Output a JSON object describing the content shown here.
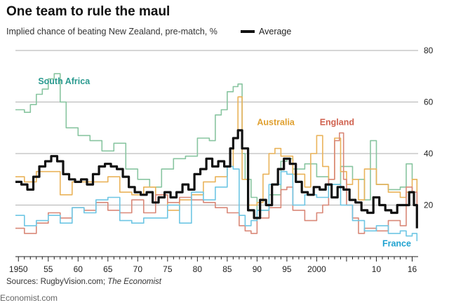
{
  "title": "One team to rule the maul",
  "subtitle": "Implied chance of beating New Zealand, pre-match, %",
  "legend": {
    "average_label": "Average"
  },
  "source": {
    "prefix": "Sources: RugbyVision.com; ",
    "italic": "The Economist"
  },
  "brand": "Economist.com",
  "colors": {
    "south_africa": "#88c5a0",
    "australia": "#eab35a",
    "england": "#d98878",
    "france": "#6ec6e4",
    "average": "#111111"
  },
  "chart_data": {
    "type": "line",
    "title": "One team to rule the maul",
    "ylabel": "Implied chance of beating New Zealand, pre-match, %",
    "xlabel": "",
    "xlim": [
      1949.5,
      2017
    ],
    "ylim": [
      0,
      80
    ],
    "yticks": [
      0,
      20,
      40,
      60,
      80
    ],
    "ytick_labels": [
      "",
      "20",
      "40",
      "60",
      "80"
    ],
    "xticks": [
      1950,
      1955,
      1960,
      1965,
      1970,
      1975,
      1980,
      1985,
      1990,
      1995,
      2000,
      2005,
      2010,
      2016
    ],
    "xtick_labels": [
      "1950",
      "55",
      "60",
      "65",
      "70",
      "75",
      "80",
      "85",
      "90",
      "95",
      "2000",
      "",
      "10",
      "16"
    ],
    "grid": true,
    "series": [
      {
        "name": "South Africa",
        "key": "south_africa",
        "x": [
          1949.5,
          1951,
          1952,
          1953,
          1954,
          1955,
          1956,
          1957,
          1958,
          1960,
          1962,
          1964,
          1966,
          1968,
          1970,
          1972,
          1974,
          1976,
          1978,
          1980,
          1982,
          1983,
          1984,
          1985,
          1986,
          1986.8,
          1987.5,
          1988,
          1989,
          1990,
          1992,
          1994,
          1995,
          1996,
          1998,
          2000,
          2002,
          2004,
          2006,
          2008,
          2009,
          2010,
          2012,
          2014,
          2015,
          2016,
          2016.8
        ],
        "values": [
          57,
          56,
          59,
          63,
          65,
          69,
          71,
          60,
          50,
          47,
          45,
          41,
          44,
          34,
          30,
          27,
          34,
          38,
          39,
          46,
          45,
          55,
          57,
          64,
          66,
          67,
          40,
          30,
          23,
          18,
          24,
          37,
          38,
          34,
          36,
          31,
          28,
          35,
          30,
          22,
          45,
          28,
          26,
          27,
          36,
          30,
          20
        ]
      },
      {
        "name": "Australia",
        "key": "australia",
        "x": [
          1949.5,
          1951,
          1953,
          1955,
          1957,
          1959,
          1961,
          1963,
          1965,
          1967,
          1969,
          1971,
          1973,
          1975,
          1977,
          1979,
          1981,
          1983,
          1985,
          1986,
          1986.8,
          1987.5,
          1988.5,
          1990,
          1991,
          1992,
          1993,
          1994,
          1996,
          1998,
          1999,
          2000,
          2001,
          2002,
          2003,
          2004,
          2005,
          2006,
          2007,
          2008,
          2010,
          2012,
          2014,
          2015,
          2016,
          2016.8
        ],
        "values": [
          31,
          29,
          33,
          33,
          24,
          29,
          29,
          29,
          31,
          25,
          24,
          27,
          24,
          18,
          22,
          24,
          29,
          31,
          35,
          46,
          62,
          30,
          20,
          21,
          32,
          40,
          42,
          39,
          32,
          27,
          40,
          47,
          35,
          30,
          46,
          33,
          28,
          30,
          22,
          34,
          28,
          25,
          23,
          25,
          30,
          20
        ]
      },
      {
        "name": "England",
        "key": "england",
        "x": [
          1949.5,
          1951,
          1953,
          1955,
          1957,
          1959,
          1961,
          1963,
          1965,
          1967,
          1969,
          1971,
          1973,
          1975,
          1977,
          1979,
          1981,
          1983,
          1985,
          1986,
          1987,
          1988,
          1989,
          1990,
          1992,
          1994,
          1995,
          1996,
          1998,
          2000,
          2001,
          2002,
          2003,
          2003.8,
          2004.5,
          2005,
          2006,
          2007,
          2008,
          2010,
          2012,
          2014,
          2015,
          2016,
          2016.8
        ],
        "values": [
          11,
          9,
          13,
          17,
          15,
          19,
          18,
          21,
          18,
          17,
          22,
          17,
          24,
          21,
          23,
          22,
          21,
          19,
          17,
          17,
          12,
          10,
          9,
          15,
          19,
          26,
          27,
          18,
          14,
          17,
          20,
          30,
          45,
          48,
          30,
          20,
          15,
          9,
          11,
          10,
          14,
          12,
          27,
          25,
          18
        ]
      },
      {
        "name": "France",
        "key": "france",
        "x": [
          1949.5,
          1951,
          1953,
          1955,
          1957,
          1959,
          1961,
          1963,
          1965,
          1967,
          1969,
          1971,
          1973,
          1975,
          1977,
          1979,
          1981,
          1983,
          1985,
          1986,
          1987,
          1988,
          1989,
          1990,
          1992,
          1994,
          1995,
          1996,
          1998,
          2000,
          2002,
          2004,
          2006,
          2008,
          2010,
          2012,
          2014,
          2015,
          2016,
          2016.8
        ],
        "values": [
          16,
          12,
          14,
          16,
          13,
          19,
          17,
          22,
          23,
          14,
          13,
          15,
          15,
          20,
          13,
          25,
          22,
          27,
          35,
          34,
          16,
          12,
          14,
          18,
          28,
          33,
          32,
          20,
          24,
          23,
          28,
          20,
          14,
          10,
          12,
          9,
          10,
          8,
          9,
          6
        ]
      },
      {
        "name": "Average",
        "key": "average",
        "x": [
          1949.5,
          1950.5,
          1951.5,
          1952.5,
          1953.5,
          1954.5,
          1955.5,
          1956.5,
          1957.5,
          1958.5,
          1959.5,
          1960.5,
          1961.5,
          1962.5,
          1963.5,
          1964.5,
          1965.5,
          1966.5,
          1967.5,
          1968.5,
          1969.5,
          1970.5,
          1971.5,
          1972.5,
          1973.5,
          1974.5,
          1975.5,
          1976.5,
          1977.5,
          1978.5,
          1979.5,
          1980.5,
          1981.5,
          1982.5,
          1983.5,
          1984.5,
          1985.5,
          1986,
          1986.8,
          1987.5,
          1988.5,
          1989.5,
          1990.5,
          1991.5,
          1992.5,
          1993.5,
          1994.5,
          1995.5,
          1996.5,
          1997.5,
          1998.5,
          1999.5,
          2000.5,
          2001.5,
          2002.5,
          2003.5,
          2004.5,
          2005.5,
          2006.5,
          2007.5,
          2008.5,
          2009.5,
          2010.5,
          2011.5,
          2012.5,
          2013.5,
          2014.5,
          2015.5,
          2016.3,
          2016.8
        ],
        "values": [
          29,
          28,
          26,
          31,
          35,
          37,
          39,
          37,
          32,
          30,
          29,
          30,
          28,
          32,
          35,
          36,
          35,
          34,
          31,
          27,
          25,
          24,
          25,
          21,
          23,
          25,
          23,
          25,
          28,
          26,
          32,
          34,
          38,
          35,
          37,
          35,
          42,
          46,
          49,
          42,
          18,
          15,
          22,
          20,
          28,
          34,
          38,
          36,
          29,
          25,
          24,
          27,
          26,
          28,
          23,
          27,
          26,
          22,
          21,
          18,
          17,
          23,
          20,
          18,
          17,
          20,
          20,
          25,
          20,
          11
        ]
      }
    ],
    "annotations": [
      "South Africa",
      "Australia",
      "England",
      "France"
    ]
  }
}
